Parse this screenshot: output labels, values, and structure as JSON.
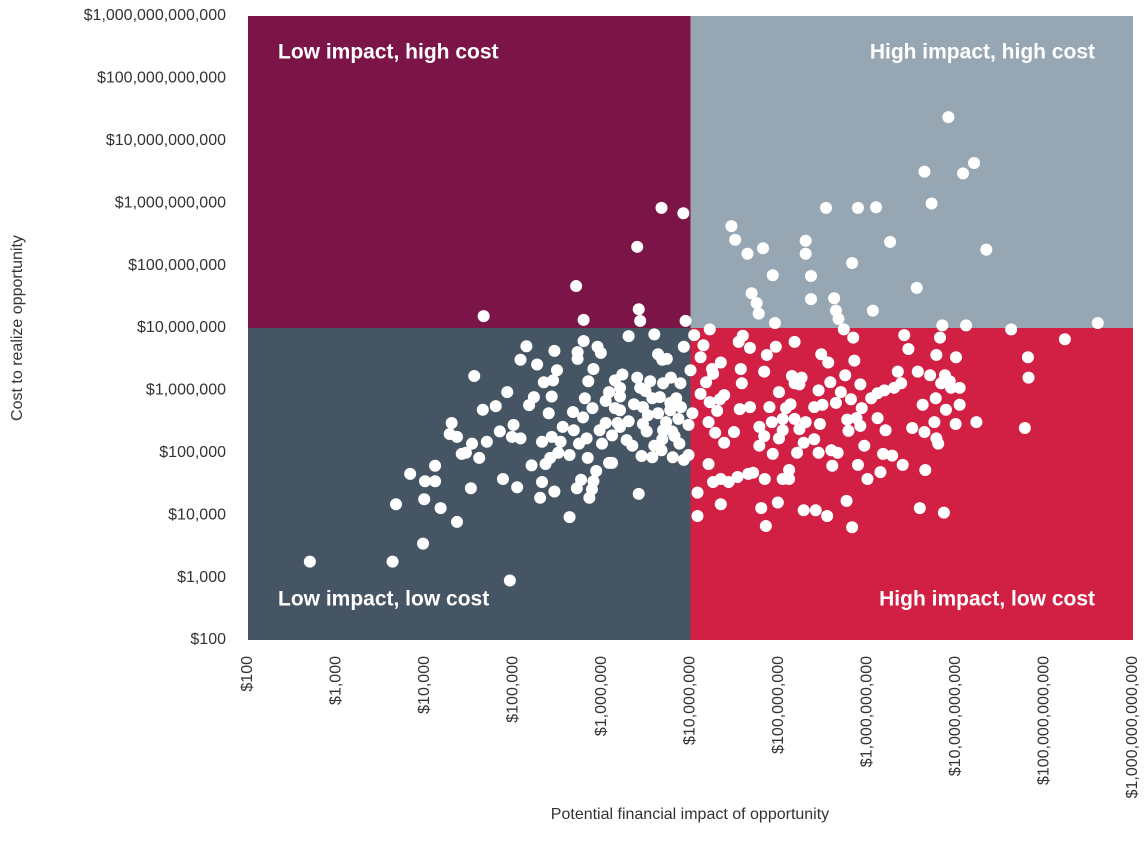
{
  "chart_data": {
    "type": "scatter",
    "x_label": "Potential financial impact of opportunity",
    "y_label": "Cost to realize opportunity",
    "log_x": true,
    "log_y": true,
    "xlim": [
      100,
      1000000000000.0
    ],
    "ylim": [
      100,
      1000000000000.0
    ],
    "xticks": [
      {
        "value": 100,
        "label": "$100"
      },
      {
        "value": 1000,
        "label": "$1,000"
      },
      {
        "value": 10000,
        "label": "$10,000"
      },
      {
        "value": 100000,
        "label": "$100,000"
      },
      {
        "value": 1000000,
        "label": "$1,000,000"
      },
      {
        "value": 10000000,
        "label": "$10,000,000"
      },
      {
        "value": 100000000,
        "label": "$100,000,000"
      },
      {
        "value": 1000000000,
        "label": "$1,000,000,000"
      },
      {
        "value": 10000000000,
        "label": "$10,000,000,000"
      },
      {
        "value": 100000000000,
        "label": "$100,000,000,000"
      },
      {
        "value": 1000000000000,
        "label": "$1,000,000,000,000"
      }
    ],
    "yticks": [
      {
        "value": 100,
        "label": "$100"
      },
      {
        "value": 1000,
        "label": "$1,000"
      },
      {
        "value": 10000,
        "label": "$10,000"
      },
      {
        "value": 100000,
        "label": "$100,000"
      },
      {
        "value": 1000000,
        "label": "$1,000,000"
      },
      {
        "value": 10000000,
        "label": "$10,000,000"
      },
      {
        "value": 100000000,
        "label": "$100,000,000"
      },
      {
        "value": 1000000000,
        "label": "$1,000,000,000"
      },
      {
        "value": 10000000000,
        "label": "$10,000,000,000"
      },
      {
        "value": 100000000000,
        "label": "$100,000,000,000"
      },
      {
        "value": 1000000000000,
        "label": "$1,000,000,000,000"
      }
    ],
    "quadrant_split": {
      "x": 10000000.0,
      "y": 10000000.0
    },
    "quadrants": [
      {
        "label": "Low impact, high cost",
        "color": "#7b1548"
      },
      {
        "label": "High impact, high cost",
        "color": "#97a6b3"
      },
      {
        "label": "Low impact, low cost",
        "color": "#455564"
      },
      {
        "label": "High impact, low cost",
        "color": "#d21f44"
      }
    ],
    "color": "#ffffff",
    "x": [
      500.0,
      4300.0,
      4700.0,
      6800.0,
      9500.0,
      9800.0,
      10000.0,
      13000.0,
      13000.0,
      15000.0,
      19000.0,
      20000.0,
      23000.0,
      23000.0,
      26000.0,
      29000.0,
      33000.0,
      34000.0,
      41000.0,
      45000.0,
      46000.0,
      36000.0,
      50000.0,
      63000.0,
      70000.0,
      76000.0,
      85000.0,
      91000.0,
      96000.0,
      100000.0,
      110000.0,
      120000.0,
      120000.0,
      140000.0,
      150000.0,
      160000.0,
      170000.0,
      185000.0,
      200000.0,
      210000.0,
      210000.0,
      220000.0,
      230000.0,
      250000.0,
      260000.0,
      270000.0,
      270000.0,
      280000.0,
      290000.0,
      290000.0,
      310000.0,
      320000.0,
      340000.0,
      360000.0,
      430000.0,
      430000.0,
      470000.0,
      480000.0,
      510000.0,
      520000.0,
      530000.0,
      530000.0,
      550000.0,
      580000.0,
      610000.0,
      620000.0,
      620000.0,
      640000.0,
      670000.0,
      690000.0,
      700000.0,
      720000.0,
      770000.0,
      780000.0,
      800000.0,
      800000.0,
      860000.0,
      890000.0,
      940000.0,
      970000.0,
      1000000.0,
      1100000.0,
      1100000.0,
      1200000.0,
      1200000.0,
      1300000.0,
      1300000.0,
      1400000.0,
      1400000.0,
      1500000.0,
      1600000.0,
      1600000.0,
      1600000.0,
      1600000.0,
      1700000.0,
      1900000.0,
      2000000.0,
      2000000.0,
      2200000.0,
      2300000.0,
      2500000.0,
      2500000.0,
      2600000.0,
      2600000.0,
      2700000.0,
      2700000.0,
      2800000.0,
      2900000.0,
      2900000.0,
      3100000.0,
      3200000.0,
      3300000.0,
      3500000.0,
      3700000.0,
      3700000.0,
      3900000.0,
      3900000.0,
      4300000.0,
      4300000.0,
      4500000.0,
      4700000.0,
      4700000.0,
      4800000.0,
      4800000.0,
      4900000.0,
      4900000.0,
      5300000.0,
      5400000.0,
      5900000.0,
      5900000.0,
      6000000.0,
      6200000.0,
      6300000.0,
      6600000.0,
      6900000.0,
      7300000.0,
      7500000.0,
      7700000.0,
      7800000.0,
      8300000.0,
      8400000.0,
      8400000.0,
      8800000.0,
      9500000.0,
      9500000.0,
      10000000.0,
      10500000.0,
      11000000.0,
      12000000.0,
      12000000.0,
      13000000.0,
      13000000.0,
      14000000.0,
      15000000.0,
      16000000.0,
      16000000.0,
      16500000.0,
      16500000.0,
      17500000.0,
      18000000.0,
      18000000.0,
      19000000.0,
      20000000.0,
      21500000.0,
      22000000.0,
      22000000.0,
      22000000.0,
      24000000.0,
      24000000.0,
      27000000.0,
      29000000.0,
      31000000.0,
      32000000.0,
      34000000.0,
      35000000.0,
      36000000.0,
      37000000.0,
      38000000.0,
      39000000.0,
      44000000.0,
      45000000.0,
      47000000.0,
      47000000.0,
      49000000.0,
      51000000.0,
      56000000.0,
      59000000.0,
      60000000.0,
      60000000.0,
      63000000.0,
      66000000.0,
      68000000.0,
      68000000.0,
      69000000.0,
      71000000.0,
      73000000.0,
      78000000.0,
      83000000.0,
      85000000.0,
      85000000.0,
      90000000.0,
      92000000.0,
      97000000.0,
      100000000.0,
      100000000.0,
      110000000.0,
      110000000.0,
      110000000.0,
      120000000.0,
      130000000.0,
      130000000.0,
      135000000.0,
      140000000.0,
      150000000.0,
      150000000.0,
      150000000.0,
      160000000.0,
      170000000.0,
      170000000.0,
      180000000.0,
      190000000.0,
      190000000.0,
      200000000.0,
      200000000.0,
      200000000.0,
      230000000.0,
      230000000.0,
      250000000.0,
      250000000.0,
      260000000.0,
      280000000.0,
      280000000.0,
      290000000.0,
      300000000.0,
      310000000.0,
      340000000.0,
      350000000.0,
      360000000.0,
      380000000.0,
      390000000.0,
      400000000.0,
      420000000.0,
      440000000.0,
      440000000.0,
      460000000.0,
      470000000.0,
      500000000.0,
      540000000.0,
      560000000.0,
      580000000.0,
      590000000.0,
      610000000.0,
      650000000.0,
      670000000.0,
      670000000.0,
      690000000.0,
      710000000.0,
      750000000.0,
      780000000.0,
      780000000.0,
      830000000.0,
      830000000.0,
      860000000.0,
      920000000.0,
      1000000000.0,
      1100000000.0,
      1150000000.0,
      1250000000.0,
      1300000000.0,
      1300000000.0,
      1400000000.0,
      1500000000.0,
      1550000000.0,
      1600000000.0,
      1800000000.0,
      1900000000.0,
      2000000000.0,
      2200000000.0,
      2400000000.0,
      2500000000.0,
      2600000000.0,
      2900000000.0,
      3200000000.0,
      3600000000.0,
      3700000000.0,
      3900000000.0,
      4200000000.0,
      4400000000.0,
      4400000000.0,
      4500000000.0,
      5100000000.0,
      5300000000.0,
      5700000000.0,
      5900000000.0,
      6000000000.0,
      6000000000.0,
      6300000000.0,
      6600000000.0,
      6800000000.0,
      7000000000.0,
      7300000000.0,
      7500000000.0,
      7700000000.0,
      8200000000.0,
      8500000000.0,
      8800000000.0,
      9900000000.0,
      10000000000.0,
      11000000000.0,
      11000000000.0,
      12000000000.0,
      13000000000.0,
      16000000000.0,
      17000000000.0,
      22000000000.0,
      42000000000.0,
      60000000000.0,
      65000000000.0,
      66000000000.0,
      170000000000.0,
      400000000000.0
    ],
    "values": [
      1800.0,
      1800.0,
      15000.0,
      46000.0,
      3500.0,
      18000.0,
      35000.0,
      35000.0,
      62000.0,
      13000.0,
      200000.0,
      300000.0,
      7800.0,
      180000.0,
      96000.0,
      100000.0,
      27000.0,
      140000.0,
      83000.0,
      490000.0,
      15500000.0,
      1700000.0,
      150000.0,
      560000.0,
      220000.0,
      38000.0,
      940000.0,
      900.0,
      180000.0,
      280000.0,
      28000.0,
      3100000.0,
      170000.0,
      5100000.0,
      580000.0,
      63000.0,
      780000.0,
      2600000.0,
      19000.0,
      34000.0,
      150000.0,
      1350000.0,
      66000.0,
      430000.0,
      83000.0,
      800000.0,
      180000.0,
      1450000.0,
      4300000.0,
      24000.0,
      2100000.0,
      100000.0,
      150000.0,
      260000.0,
      9300.0,
      92000.0,
      450000.0,
      230000.0,
      47000000.0,
      27000.0,
      3200000.0,
      4100000.0,
      140000.0,
      37000.0,
      370000.0,
      13500000.0,
      6200000.0,
      750000.0,
      170000.0,
      83000.0,
      1400000.0,
      19000.0,
      26000.0,
      520000.0,
      2200000.0,
      35000.0,
      51000.0,
      5000000.0,
      230000.0,
      4000000.0,
      140000.0,
      300000.0,
      680000.0,
      69000.0,
      940000.0,
      190000.0,
      69000.0,
      1450000.0,
      520000.0,
      300000.0,
      1100000.0,
      800000.0,
      480000.0,
      260000.0,
      1800000.0,
      160000.0,
      320000.0,
      7400000.0,
      130000.0,
      600000.0,
      1600000.0,
      200000000.0,
      22000.0,
      20000000.0,
      13000000.0,
      1100000.0,
      89000.0,
      290000.0,
      540000.0,
      980000.0,
      220000.0,
      400000.0,
      1400000.0,
      750000.0,
      85000.0,
      7900000.0,
      130000.0,
      3800000.0,
      430000.0,
      780000.0,
      840000000.0,
      110000.0,
      165000.0,
      3100000.0,
      230000.0,
      1300000.0,
      310000.0,
      3200000.0,
      630000.0,
      480000.0,
      1600000.0,
      220000.0,
      85000.0,
      185000.0,
      750000.0,
      350000.0,
      140000.0,
      1300000.0,
      540000.0,
      690000000.0,
      5000000.0,
      77000.0,
      13000000.0,
      92000.0,
      280000.0,
      2100000.0,
      430000.0,
      7700000.0,
      23000.0,
      9700.0,
      3400000.0,
      880000.0,
      5300000.0,
      1350000.0,
      66000.0,
      310000.0,
      9500000.0,
      650000.0,
      2200000.0,
      34000.0,
      1850000.0,
      210000.0,
      470000.0,
      720000.0,
      15000.0,
      2800000.0,
      38000.0,
      145000.0,
      840000.0,
      34000.0,
      430000000.0,
      215000.0,
      260000000.0,
      41000.0,
      6000000.0,
      500000.0,
      2200000.0,
      1300000.0,
      7500000.0,
      155000000.0,
      46000.0,
      4800000.0,
      540000.0,
      36000000.0,
      48000.0,
      25000000.0,
      17000000.0,
      130000.0,
      260000.0,
      13000.0,
      190000000.0,
      2000000.0,
      185000.0,
      38000.0,
      6700.0,
      3700000.0,
      540000.0,
      310000.0,
      70000000.0,
      96000.0,
      12000000.0,
      5000000.0,
      16000.0,
      170000.0,
      940000.0,
      38000.0,
      230000.0,
      350000.0,
      520000.0,
      38000.0,
      53000.0,
      600000.0,
      1700000.0,
      6000000.0,
      350000.0,
      1300000.0,
      100000.0,
      240000.0,
      1250000.0,
      1600000.0,
      12000.0,
      145000.0,
      310000.0,
      155000000.0,
      250000000.0,
      68000000.0,
      29000000.0,
      540000.0,
      165000.0,
      12000.0,
      1000000.0,
      100000.0,
      290000.0,
      3800000.0,
      590000.0,
      840000000.0,
      9700.0,
      2800000.0,
      1350000.0,
      110000.0,
      62000.0,
      30000000.0,
      19000000.0,
      630000.0,
      100000.0,
      14000000.0,
      940000.0,
      9500000.0,
      1750000.0,
      17000.0,
      340000.0,
      225000.0,
      720000.0,
      110000000.0,
      6400.0,
      7000000.0,
      3000000.0,
      360000.0,
      840000000.0,
      64000.0,
      270000.0,
      1250000.0,
      520000.0,
      130000.0,
      38000.0,
      750000.0,
      19000000.0,
      860000000.0,
      900000.0,
      360000.0,
      49000.0,
      96000.0,
      1000000.0,
      230000.0,
      240000000.0,
      90000.0,
      1100000.0,
      2000000.0,
      1300000.0,
      64000.0,
      7700000.0,
      4600000.0,
      250000.0,
      44000000.0,
      2000000.0,
      13000.0,
      590000.0,
      215000.0,
      3200000000.0,
      53000.0,
      1750000.0,
      990000000.0,
      310000.0,
      750000.0,
      170000.0,
      3700000.0,
      140000.0,
      7000000.0,
      1300000.0,
      11000000.0,
      11000.0,
      1750000.0,
      490000.0,
      24000000000.0,
      1400000.0,
      1100000.0,
      290000.0,
      3400000.0,
      590000.0,
      1100000.0,
      3000000000.0,
      11000000.0,
      4400000000.0,
      310000.0,
      180000000.0,
      9500000.0,
      250000.0,
      3400000.0,
      1600000.0,
      6600000.0,
      12000000.0
    ]
  }
}
